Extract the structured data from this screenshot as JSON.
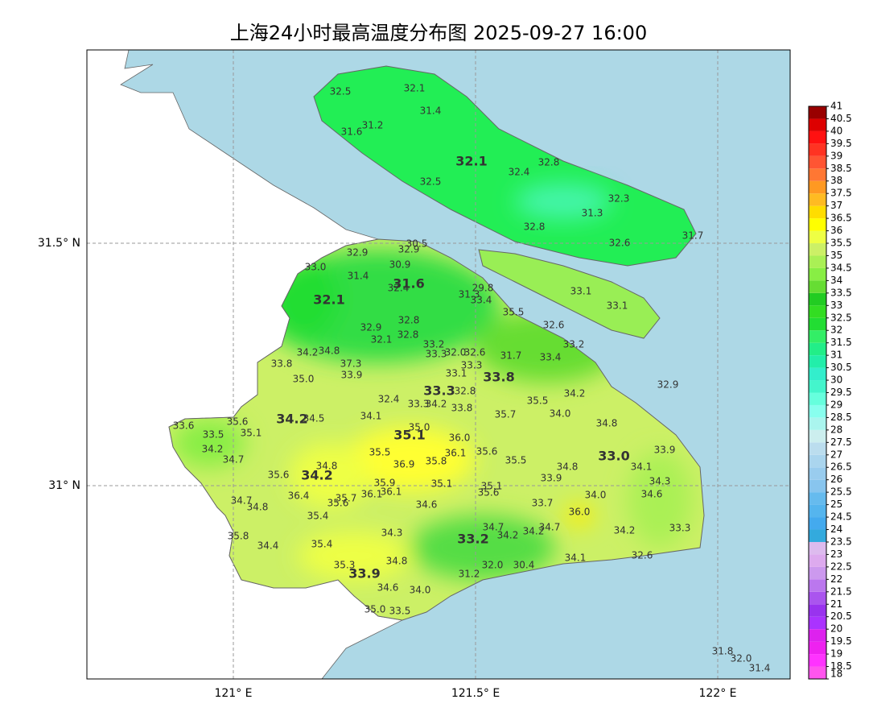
{
  "map": {
    "title": "上海24小时最高温度分布图 2025-09-27 16:00",
    "xlim": [
      120.698,
      122.149
    ],
    "ylim": [
      30.601,
      31.899
    ],
    "xticks": [
      {
        "value": 121,
        "label": "121° E"
      },
      {
        "value": 121.5,
        "label": "121.5° E"
      },
      {
        "value": 122,
        "label": "122° E"
      }
    ],
    "yticks": [
      {
        "value": 31,
        "label": "31° N"
      },
      {
        "value": 31.5,
        "label": "31.5° N"
      }
    ],
    "grid": true,
    "colorbar": {
      "levels": [
        18,
        18.5,
        19,
        19.5,
        20,
        20.5,
        21,
        21.5,
        22,
        22.5,
        23,
        23.5,
        24,
        24.5,
        25,
        25.5,
        26,
        26.5,
        27,
        27.5,
        28,
        28.5,
        29,
        29.5,
        30,
        30.5,
        31,
        31.5,
        32,
        32.5,
        33,
        33.5,
        34,
        34.5,
        35,
        35.5,
        36,
        36.5,
        37,
        37.5,
        38,
        38.5,
        39,
        39.5,
        40,
        40.5,
        41
      ],
      "colors": [
        "#ff55ee",
        "#ff33ff",
        "#ee22f0",
        "#dd22ee",
        "#aa33ff",
        "#9933ee",
        "#aa55ee",
        "#bb77ee",
        "#cc99ee",
        "#ddaaee",
        "#ddbbee",
        "#33aadd",
        "#44aaee",
        "#55b5ee",
        "#66bbee",
        "#88c5ee",
        "#99ccee",
        "#aad5ee",
        "#bbddee",
        "#cceeee",
        "#aaf5ee",
        "#88ffee",
        "#66ffdd",
        "#44f5cc",
        "#33eecc",
        "#22eeaa",
        "#22ee88",
        "#33ee66",
        "#22dd33",
        "#33dd22",
        "#22cc22",
        "#66dd33",
        "#88ee44",
        "#aaf055",
        "#ccf066",
        "#eeff44",
        "#ffff00",
        "#ffdd00",
        "#ffbb22",
        "#ff9922",
        "#ff7733",
        "#ff5533",
        "#ff3322",
        "#ff1111",
        "#dd0000",
        "#990000"
      ]
    },
    "stations": {
      "values": [
        32.5,
        32.1,
        31.4,
        31.2,
        31.6,
        32.1,
        32.4,
        32.8,
        32.5,
        32.3,
        31.3,
        32.8,
        32.6,
        31.7,
        30.5,
        32.9,
        32.9,
        33.0,
        30.9,
        31.4,
        31.6,
        32.4,
        29.8,
        31.3,
        33.4,
        33.1,
        33.1,
        32.1,
        35.5,
        32.8,
        32.9,
        32.8,
        32.6,
        32.1,
        33.2,
        33.2,
        34.2,
        34.8,
        33.3,
        32.0,
        32.6,
        31.7,
        33.4,
        33.8,
        37.3,
        33.3,
        33.9,
        33.1,
        33.8,
        35.0,
        32.9,
        33.3,
        32.8,
        32.4,
        35.5,
        34.2,
        33.3,
        34.2,
        33.8,
        33.6,
        35.6,
        34.2,
        34.5,
        34.1,
        35.0,
        35.7,
        34.0,
        34.8,
        33.5,
        35.1,
        35.1,
        36.0,
        34.2,
        35.5,
        36.1,
        35.6,
        33.9,
        33.0,
        34.7,
        36.9,
        35.8,
        34.8,
        35.5,
        34.8,
        34.1,
        35.6,
        34.2,
        33.9,
        34.3,
        35.9,
        35.1,
        35.1,
        36.4,
        35.7,
        36.1,
        35.6,
        36.1,
        35.6,
        34.0,
        34.6,
        34.7,
        34.8,
        34.6,
        33.7,
        36.0,
        35.4,
        34.7,
        34.7,
        34.3,
        34.2,
        34.2,
        34.2,
        33.3,
        35.8,
        33.2,
        34.4,
        35.4,
        34.8,
        34.1,
        32.6,
        35.3,
        32.0,
        30.4,
        33.9,
        31.2,
        34.6,
        34.0,
        35.0,
        33.5,
        31.8,
        32.0,
        31.4
      ],
      "value_labels": [
        "32.5",
        "32.1",
        "31.4",
        "31.2",
        "31.6",
        "32.1",
        "32.4",
        "32.8",
        "32.5",
        "32.3",
        "31.3",
        "32.8",
        "32.6",
        "31.7",
        "30.5",
        "32.9",
        "32.9",
        "33.0",
        "30.9",
        "31.4",
        "31.6",
        "32.4",
        "29.8",
        "31.3",
        "33.4",
        "33.1",
        "33.1",
        "32.1",
        "35.5",
        "32.8",
        "32.9",
        "32.8",
        "32.6",
        "32.1",
        "33.2",
        "33.2",
        "34.2",
        "34.8",
        "33.3",
        "32.0",
        "32.6",
        "31.7",
        "33.4",
        "33.8",
        "37.3",
        "33.3",
        "33.9",
        "33.1",
        "33.8",
        "35.0",
        "32.9",
        "33.3",
        "32.8",
        "32.4",
        "35.5",
        "34.2",
        "33.3",
        "34.2",
        "33.8",
        "33.6",
        "35.6",
        "34.2",
        "34.5",
        "34.1",
        "35.0",
        "35.7",
        "34.0",
        "34.8",
        "33.5",
        "35.1",
        "35.1",
        "36.0",
        "34.2",
        "35.5",
        "36.1",
        "35.6",
        "33.9",
        "33.0",
        "34.7",
        "36.9",
        "35.8",
        "34.8",
        "35.5",
        "34.8",
        "34.1",
        "35.6",
        "34.2",
        "33.9",
        "34.3",
        "35.9",
        "35.1",
        "35.1",
        "36.4",
        "35.7",
        "36.1",
        "35.6",
        "36.1",
        "35.6",
        "34.0",
        "34.6",
        "34.7",
        "34.8",
        "34.6",
        "33.7",
        "36.0",
        "35.4",
        "34.7",
        "34.7",
        "34.3",
        "34.2",
        "34.2",
        "34.2",
        "33.3",
        "35.8",
        "33.2",
        "34.4",
        "35.4",
        "34.8",
        "34.1",
        "32.6",
        "35.3",
        "32.0",
        "30.4",
        "33.9",
        "31.2",
        "34.6",
        "34.0",
        "35.0",
        "33.5",
        "31.8",
        "32.0",
        "31.4"
      ]
    }
  }
}
